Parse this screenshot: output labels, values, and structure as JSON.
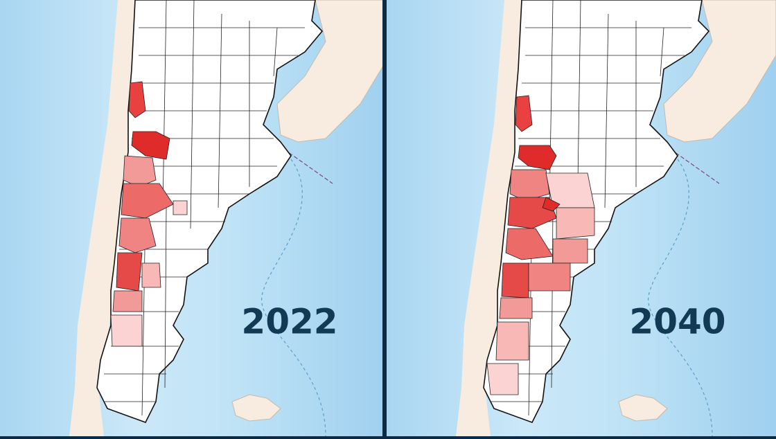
{
  "panels": [
    {
      "label": "2022"
    },
    {
      "label": "2040"
    }
  ]
}
